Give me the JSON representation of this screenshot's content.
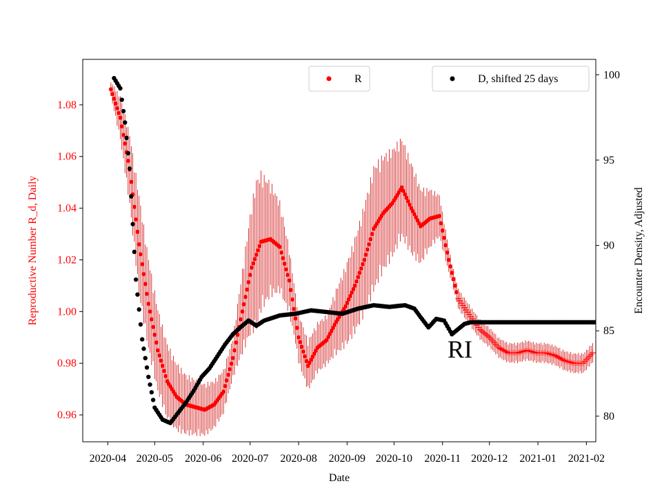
{
  "chart_data": {
    "type": "scatter",
    "xlabel": "Date",
    "ylabel_left": "Reproductive Number R_d, Daily",
    "ylabel_right": "Encounter Density, Adjusted",
    "x_ticks": [
      "2020-04",
      "2020-05",
      "2020-06",
      "2020-07",
      "2020-08",
      "2020-09",
      "2020-10",
      "2020-11",
      "2020-12",
      "2021-01",
      "2021-02"
    ],
    "y_left_ticks": [
      0.96,
      0.98,
      1.0,
      1.02,
      1.04,
      1.06,
      1.08
    ],
    "y_left_tick_labels": [
      "0.96",
      "0.98",
      "1.00",
      "1.02",
      "1.04",
      "1.06",
      "1.08"
    ],
    "y_right_ticks": [
      80,
      85,
      90,
      95,
      100
    ],
    "y_right_tick_labels": [
      "80",
      "85",
      "90",
      "95",
      "100"
    ],
    "ylim_left": [
      0.9496,
      1.0976
    ],
    "ylim_right": [
      78.5,
      100.9
    ],
    "xlim_days": [
      -16,
      312
    ],
    "annotation": "RI",
    "colors": {
      "r_series": "#ff0000",
      "d_series": "#000000",
      "error_bar": "#cc0000",
      "axis": "#000000"
    },
    "series": [
      {
        "name": "R",
        "legend_label": "R",
        "axis": "left",
        "color": "#ff0000",
        "anchors_day": [
          2,
          8,
          14,
          20,
          26,
          32,
          38,
          44,
          50,
          56,
          62,
          68,
          74,
          80,
          86,
          92,
          98,
          104,
          110,
          116,
          122,
          128,
          134,
          140,
          146,
          152,
          158,
          164,
          170,
          176,
          182,
          188,
          194,
          200,
          206,
          212,
          218,
          224,
          232,
          238,
          244,
          250,
          256,
          262,
          268,
          274,
          280,
          286,
          292,
          298,
          304,
          310
        ],
        "anchors_value": [
          1.086,
          1.075,
          1.055,
          1.026,
          1.003,
          0.985,
          0.973,
          0.967,
          0.964,
          0.963,
          0.962,
          0.964,
          0.969,
          0.982,
          1.0,
          1.017,
          1.027,
          1.028,
          1.025,
          1.012,
          0.99,
          0.979,
          0.986,
          0.989,
          0.996,
          1.002,
          1.01,
          1.02,
          1.032,
          1.038,
          1.042,
          1.048,
          1.04,
          1.033,
          1.036,
          1.037,
          1.02,
          1.005,
          0.998,
          0.993,
          0.99,
          0.986,
          0.984,
          0.984,
          0.985,
          0.984,
          0.984,
          0.983,
          0.981,
          0.98,
          0.98,
          0.984
        ],
        "error_halfwidth_anchors_day": [
          2,
          20,
          50,
          80,
          95,
          105,
          120,
          140,
          170,
          195,
          220,
          240,
          310
        ],
        "error_halfwidth_anchors": [
          0.003,
          0.02,
          0.012,
          0.008,
          0.03,
          0.022,
          0.01,
          0.01,
          0.025,
          0.018,
          0.004,
          0.004,
          0.004
        ],
        "plus_markers_from_day": 224
      },
      {
        "name": "D, shifted 25 days",
        "legend_label": "D, shifted 25 days",
        "axis": "right",
        "color": "#000000",
        "anchors_day": [
          4,
          8,
          11,
          14,
          18,
          22,
          26,
          30,
          35,
          40,
          45,
          50,
          55,
          60,
          65,
          70,
          75,
          80,
          86,
          90,
          95,
          100,
          110,
          120,
          130,
          140,
          150,
          160,
          170,
          180,
          190,
          196,
          200,
          205,
          210,
          215,
          220,
          228,
          232,
          240,
          250,
          260,
          270,
          280,
          290,
          300,
          312
        ],
        "anchors_value": [
          99.8,
          99.2,
          97.2,
          94.5,
          88.0,
          84.5,
          82.3,
          80.5,
          79.8,
          79.6,
          80.2,
          80.8,
          81.5,
          82.3,
          82.8,
          83.5,
          84.2,
          84.8,
          85.3,
          85.6,
          85.3,
          85.6,
          85.9,
          86.0,
          86.2,
          86.1,
          86.0,
          86.3,
          86.5,
          86.4,
          86.5,
          86.3,
          85.8,
          85.2,
          85.7,
          85.6,
          84.8,
          85.4,
          85.5,
          85.5,
          85.5,
          85.5,
          85.5,
          85.5,
          85.5,
          85.5,
          85.5
        ],
        "range_days": [
          4,
          312
        ],
        "step_days": 1
      }
    ]
  }
}
